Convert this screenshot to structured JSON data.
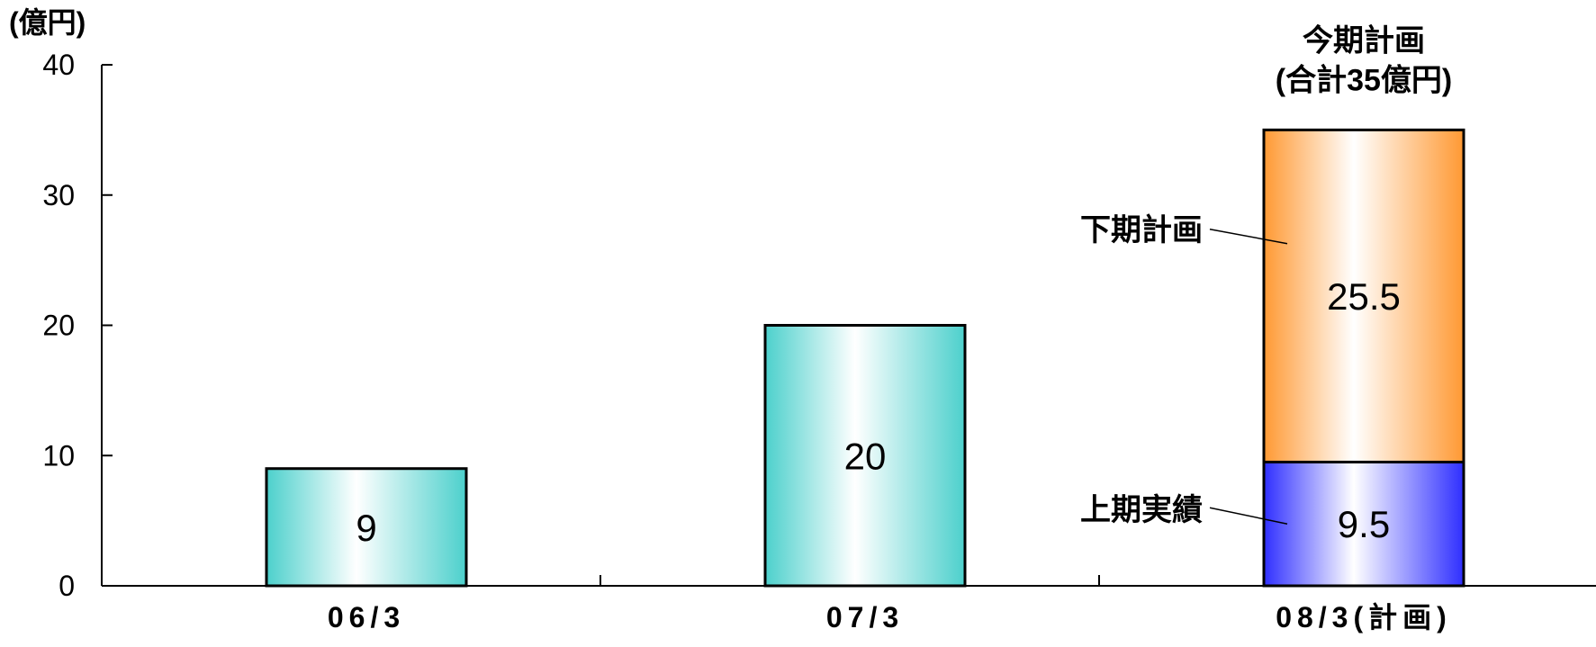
{
  "chart_data": {
    "type": "bar",
    "stacked": true,
    "unit_label": "(億円)",
    "categories": [
      "06/3",
      "07/3",
      "08/3(計画)"
    ],
    "series": [
      {
        "values": [
          9,
          20,
          null
        ],
        "color": "#4cd0cc"
      },
      {
        "name": "上期実績",
        "values": [
          null,
          null,
          9.5
        ],
        "color": "#2f2fff"
      },
      {
        "name": "下期計画",
        "values": [
          null,
          null,
          25.5
        ],
        "color": "#ff9933"
      }
    ],
    "value_labels": [
      "9",
      "20",
      "9.5",
      "25.5"
    ],
    "annotation_title": "今期計画",
    "annotation_total": "(合計35億円)",
    "ylim": [
      0,
      40
    ],
    "yticks": [
      "0",
      "10",
      "20",
      "30",
      "40"
    ],
    "grid": false
  }
}
